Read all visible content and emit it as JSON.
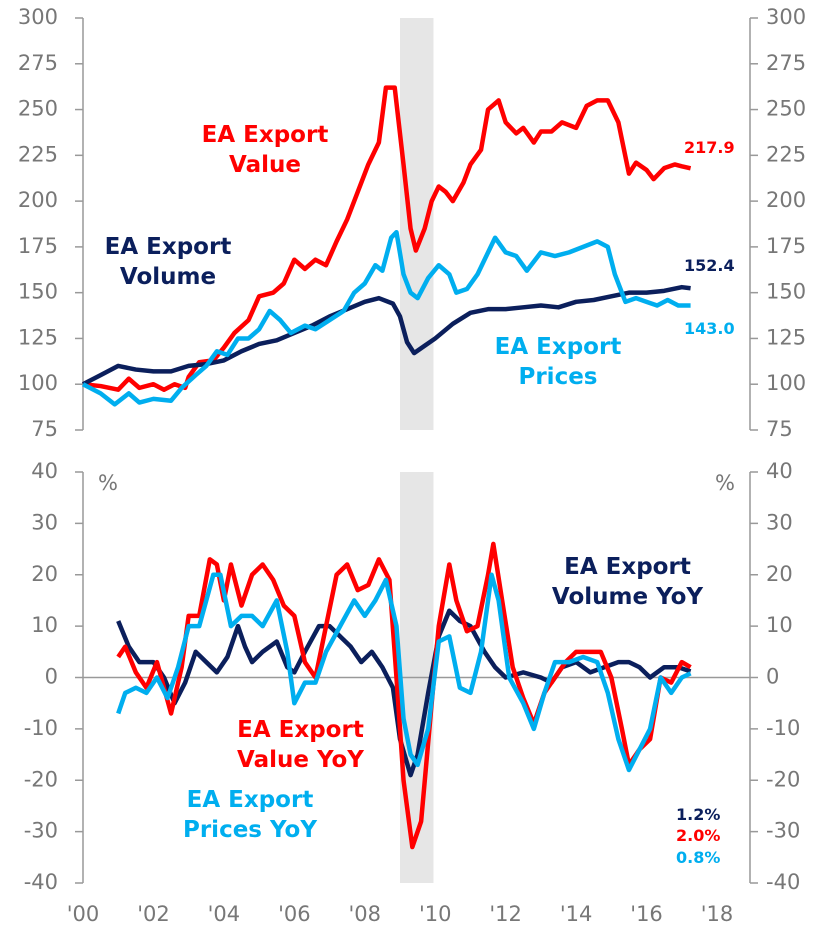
{
  "chart_data": [
    {
      "type": "line",
      "xlim": [
        2000,
        2018
      ],
      "ylim": [
        75,
        300
      ],
      "yticks": [
        75,
        100,
        125,
        150,
        175,
        200,
        225,
        250,
        275,
        300
      ],
      "y2lim": [
        75,
        300
      ],
      "y2ticks": [
        75,
        100,
        125,
        150,
        175,
        200,
        225,
        250,
        275,
        300
      ],
      "shade": [
        2009,
        2009.95
      ],
      "series": [
        {
          "name": "EA Export Value",
          "color": "#ff0000",
          "last_label": "217.9",
          "x": [
            2000,
            2000.5,
            2001,
            2001.3,
            2001.6,
            2002,
            2002.3,
            2002.6,
            2002.9,
            2003,
            2003.3,
            2003.7,
            2004,
            2004.3,
            2004.7,
            2005,
            2005.4,
            2005.7,
            2006,
            2006.3,
            2006.6,
            2006.9,
            2007.2,
            2007.5,
            2007.8,
            2008.1,
            2008.4,
            2008.6,
            2008.85,
            2009.1,
            2009.3,
            2009.45,
            2009.7,
            2009.9,
            2010.1,
            2010.3,
            2010.5,
            2010.8,
            2011,
            2011.3,
            2011.5,
            2011.8,
            2012,
            2012.3,
            2012.5,
            2012.8,
            2013,
            2013.3,
            2013.6,
            2014,
            2014.3,
            2014.6,
            2014.9,
            2015.2,
            2015.5,
            2015.7,
            2016,
            2016.2,
            2016.5,
            2016.8,
            2017,
            2017.25
          ],
          "values": [
            100,
            99,
            97,
            103,
            98,
            100,
            97,
            100,
            98,
            104,
            112,
            113,
            120,
            128,
            135,
            148,
            150,
            155,
            168,
            163,
            168,
            165,
            178,
            190,
            205,
            220,
            232,
            262,
            262,
            220,
            185,
            173,
            185,
            200,
            208,
            205,
            200,
            210,
            220,
            228,
            250,
            255,
            243,
            237,
            240,
            232,
            238,
            238,
            243,
            240,
            252,
            255,
            255,
            243,
            215,
            221,
            217,
            212,
            218,
            220,
            219,
            217.9
          ]
        },
        {
          "name": "EA Export Volume",
          "color": "#0b1f5c",
          "last_label": "152.4",
          "x": [
            2000,
            2000.5,
            2001,
            2001.5,
            2002,
            2002.5,
            2003,
            2003.5,
            2004,
            2004.5,
            2005,
            2005.5,
            2006,
            2006.5,
            2007,
            2007.5,
            2008,
            2008.4,
            2008.8,
            2009,
            2009.2,
            2009.4,
            2009.7,
            2010,
            2010.5,
            2011,
            2011.5,
            2012,
            2012.5,
            2013,
            2013.5,
            2014,
            2014.5,
            2015,
            2015.5,
            2016,
            2016.5,
            2017,
            2017.25
          ],
          "values": [
            100,
            105,
            110,
            108,
            107,
            107,
            110,
            111,
            113,
            118,
            122,
            124,
            128,
            132,
            137,
            141,
            145,
            147,
            144,
            137,
            123,
            117,
            121,
            125,
            133,
            139,
            141,
            141,
            142,
            143,
            142,
            145,
            146,
            148,
            150,
            150,
            151,
            153,
            152.4
          ]
        },
        {
          "name": "EA Export Prices",
          "color": "#00aeef",
          "last_label": "143.0",
          "x": [
            2000,
            2000.5,
            2000.9,
            2001.3,
            2001.6,
            2002,
            2002.5,
            2002.8,
            2003.2,
            2003.5,
            2003.8,
            2004.1,
            2004.4,
            2004.7,
            2005,
            2005.3,
            2005.6,
            2005.9,
            2006.3,
            2006.6,
            2007,
            2007.4,
            2007.7,
            2008,
            2008.3,
            2008.5,
            2008.75,
            2008.9,
            2009.1,
            2009.3,
            2009.5,
            2009.8,
            2010.1,
            2010.4,
            2010.6,
            2010.9,
            2011.2,
            2011.5,
            2011.7,
            2012,
            2012.3,
            2012.6,
            2013,
            2013.4,
            2013.8,
            2014.2,
            2014.6,
            2014.9,
            2015.1,
            2015.4,
            2015.7,
            2016,
            2016.3,
            2016.6,
            2016.9,
            2017.25
          ],
          "values": [
            100,
            95,
            89,
            95,
            90,
            92,
            91,
            98,
            105,
            110,
            118,
            116,
            125,
            125,
            130,
            140,
            135,
            128,
            132,
            130,
            135,
            140,
            150,
            155,
            165,
            162,
            180,
            183,
            160,
            150,
            147,
            158,
            165,
            160,
            150,
            152,
            160,
            172,
            180,
            172,
            170,
            162,
            172,
            170,
            172,
            175,
            178,
            175,
            160,
            145,
            147,
            145,
            143,
            146,
            143,
            143.0
          ]
        }
      ]
    },
    {
      "type": "line",
      "xlim": [
        2000,
        2018
      ],
      "ylim": [
        -40,
        40
      ],
      "yticks": [
        -40,
        -30,
        -20,
        -10,
        0,
        10,
        20,
        30,
        40
      ],
      "y2lim": [
        -40,
        40
      ],
      "y2ticks": [
        -40,
        -30,
        -20,
        -10,
        0,
        10,
        20,
        30,
        40
      ],
      "shade": [
        2009,
        2009.95
      ],
      "unit": "%",
      "xticks": [
        {
          "value": 2000,
          "label": "'00"
        },
        {
          "value": 2002,
          "label": "'02"
        },
        {
          "value": 2004,
          "label": "'04"
        },
        {
          "value": 2006,
          "label": "'06"
        },
        {
          "value": 2008,
          "label": "'08"
        },
        {
          "value": 2010,
          "label": "'10"
        },
        {
          "value": 2012,
          "label": "'12"
        },
        {
          "value": 2014,
          "label": "'14"
        },
        {
          "value": 2016,
          "label": "'16"
        },
        {
          "value": 2018,
          "label": "'18"
        }
      ],
      "series": [
        {
          "name": "EA Export Volume YoY",
          "color": "#0b1f5c",
          "last_label": "1.2%",
          "x": [
            2001,
            2001.3,
            2001.6,
            2002,
            2002.3,
            2002.6,
            2002.9,
            2003.2,
            2003.5,
            2003.8,
            2004.1,
            2004.4,
            2004.6,
            2004.8,
            2005.1,
            2005.5,
            2005.8,
            2006,
            2006.3,
            2006.7,
            2007,
            2007.3,
            2007.6,
            2007.9,
            2008.2,
            2008.5,
            2008.8,
            2009,
            2009.3,
            2009.5,
            2009.8,
            2010.1,
            2010.4,
            2010.7,
            2011,
            2011.4,
            2011.7,
            2012,
            2012.5,
            2013,
            2013.3,
            2013.6,
            2014,
            2014.4,
            2014.8,
            2015.2,
            2015.5,
            2015.8,
            2016.1,
            2016.5,
            2016.9,
            2017.25
          ],
          "values": [
            11,
            6,
            3,
            3,
            0,
            -5,
            -1,
            5,
            3,
            1,
            4,
            10,
            6,
            3,
            5,
            7,
            2,
            1,
            5,
            10,
            10,
            8,
            6,
            3,
            5,
            2,
            -2,
            -12,
            -19,
            -15,
            -3,
            8,
            13,
            11,
            10,
            5,
            2,
            0,
            1,
            0,
            -1,
            2,
            3,
            1,
            2,
            3,
            3,
            2,
            0,
            2,
            2,
            1.2
          ]
        },
        {
          "name": "EA Export Value YoY",
          "color": "#ff0000",
          "last_label": "2.0%",
          "x": [
            2001,
            2001.2,
            2001.5,
            2001.8,
            2002.1,
            2002.5,
            2002.8,
            2003,
            2003.3,
            2003.6,
            2003.8,
            2004,
            2004.2,
            2004.5,
            2004.8,
            2005.1,
            2005.4,
            2005.7,
            2006,
            2006.3,
            2006.6,
            2006.9,
            2007.2,
            2007.5,
            2007.8,
            2008.1,
            2008.4,
            2008.7,
            2008.9,
            2009.1,
            2009.35,
            2009.6,
            2009.9,
            2010.1,
            2010.4,
            2010.6,
            2010.9,
            2011.2,
            2011.5,
            2011.65,
            2011.9,
            2012.2,
            2012.5,
            2012.8,
            2013.1,
            2013.4,
            2013.7,
            2014,
            2014.4,
            2014.7,
            2015,
            2015.3,
            2015.5,
            2015.8,
            2016.1,
            2016.4,
            2016.7,
            2017,
            2017.25
          ],
          "values": [
            4,
            6,
            1,
            -2,
            3,
            -7,
            2,
            12,
            12,
            23,
            22,
            15,
            22,
            14,
            20,
            22,
            19,
            14,
            12,
            3,
            0,
            10,
            20,
            22,
            17,
            18,
            23,
            19,
            0,
            -20,
            -33,
            -28,
            -5,
            10,
            22,
            15,
            9,
            10,
            20,
            26,
            15,
            2,
            -4,
            -9,
            -3,
            0,
            3,
            5,
            5,
            5,
            0,
            -10,
            -17,
            -14,
            -12,
            0,
            -1,
            3,
            2.0
          ]
        },
        {
          "name": "EA Export Prices YoY",
          "color": "#00aeef",
          "last_label": "0.8%",
          "x": [
            2001,
            2001.2,
            2001.5,
            2001.8,
            2002.1,
            2002.4,
            2002.7,
            2003,
            2003.3,
            2003.7,
            2003.9,
            2004.2,
            2004.5,
            2004.8,
            2005.1,
            2005.5,
            2005.8,
            2006,
            2006.3,
            2006.6,
            2006.9,
            2007.3,
            2007.7,
            2008,
            2008.3,
            2008.6,
            2008.9,
            2009.1,
            2009.3,
            2009.5,
            2009.8,
            2010.1,
            2010.4,
            2010.7,
            2011,
            2011.3,
            2011.6,
            2011.8,
            2012.1,
            2012.5,
            2012.8,
            2013.1,
            2013.4,
            2013.8,
            2014.2,
            2014.6,
            2014.9,
            2015.2,
            2015.5,
            2015.8,
            2016.1,
            2016.4,
            2016.7,
            2017,
            2017.25
          ],
          "values": [
            -7,
            -3,
            -2,
            -3,
            0,
            -4,
            2,
            10,
            10,
            20,
            20,
            10,
            12,
            12,
            10,
            15,
            5,
            -5,
            -1,
            -1,
            5,
            10,
            15,
            12,
            15,
            19,
            10,
            -8,
            -15,
            -17,
            -10,
            7,
            8,
            -2,
            -3,
            5,
            20,
            15,
            0,
            -5,
            -10,
            -3,
            3,
            3,
            4,
            3,
            -3,
            -12,
            -18,
            -14,
            -10,
            0,
            -3,
            0,
            0.8
          ]
        }
      ]
    }
  ]
}
